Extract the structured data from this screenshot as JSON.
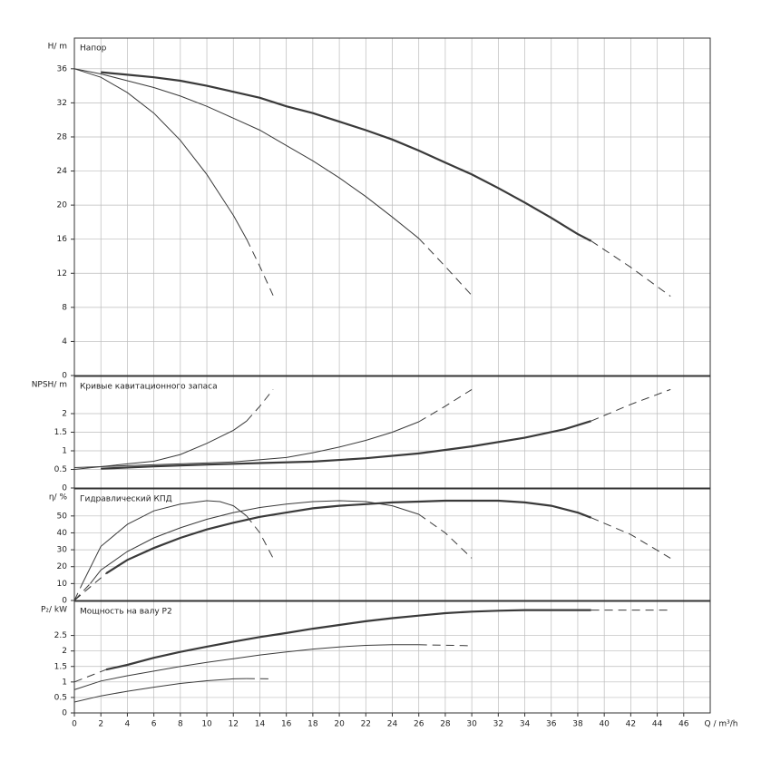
{
  "chart_data": [
    {
      "type": "line",
      "title": "Напор",
      "ylabel": "H/ m",
      "xlim": [
        0,
        48
      ],
      "ylim": [
        0,
        39.6
      ],
      "yticks": [
        0,
        4,
        8,
        12,
        16,
        20,
        24,
        28,
        32,
        36
      ],
      "grid": true,
      "series": [
        {
          "color": "#3a3a3a",
          "width": 2.2,
          "dashed": false,
          "x": [
            2,
            4,
            6,
            8,
            10,
            12,
            14,
            16,
            18,
            20,
            22,
            24,
            26,
            28,
            30,
            32,
            34,
            36,
            38,
            39
          ],
          "values": [
            35.6,
            35.3,
            35,
            34.6,
            34,
            33.3,
            32.6,
            31.6,
            30.8,
            29.8,
            28.8,
            27.7,
            26.4,
            25,
            23.6,
            22,
            20.3,
            18.5,
            16.6,
            15.8
          ]
        },
        {
          "color": "#3a3a3a",
          "width": 1,
          "dashed": true,
          "x": [
            39,
            42,
            45
          ],
          "values": [
            15.8,
            12.7,
            9.3
          ]
        },
        {
          "color": "#3a3a3a",
          "width": 1,
          "dashed": false,
          "x": [
            0,
            2,
            4,
            6,
            8,
            10,
            12,
            14,
            16,
            18,
            20,
            22,
            24,
            26
          ],
          "values": [
            36,
            35.4,
            34.6,
            33.8,
            32.8,
            31.6,
            30.2,
            28.8,
            27,
            25.2,
            23.2,
            21,
            18.6,
            16.1
          ]
        },
        {
          "color": "#3a3a3a",
          "width": 1,
          "dashed": true,
          "x": [
            26,
            28,
            30
          ],
          "values": [
            16.1,
            12.8,
            9.4
          ]
        },
        {
          "color": "#3a3a3a",
          "width": 1,
          "dashed": false,
          "x": [
            0,
            2,
            4,
            6,
            8,
            10,
            12,
            13
          ],
          "values": [
            36,
            35,
            33.2,
            30.8,
            27.6,
            23.6,
            18.8,
            16
          ]
        },
        {
          "color": "#3a3a3a",
          "width": 1,
          "dashed": true,
          "x": [
            13,
            14,
            15
          ],
          "values": [
            16,
            12.8,
            9.4
          ]
        }
      ]
    },
    {
      "type": "line",
      "title": "Кривые кавитационного запаса",
      "ylabel": "NPSH/ m",
      "xlim": [
        0,
        48
      ],
      "ylim": [
        0,
        3
      ],
      "yticks": [
        0,
        0.5,
        1,
        1.5,
        2
      ],
      "grid": true,
      "series": [
        {
          "color": "#3a3a3a",
          "width": 2.2,
          "dashed": false,
          "x": [
            2,
            6,
            10,
            14,
            18,
            22,
            26,
            30,
            34,
            37,
            39
          ],
          "values": [
            0.52,
            0.58,
            0.63,
            0.67,
            0.71,
            0.8,
            0.93,
            1.12,
            1.35,
            1.58,
            1.8
          ]
        },
        {
          "color": "#3a3a3a",
          "width": 1,
          "dashed": true,
          "x": [
            39,
            42,
            45
          ],
          "values": [
            1.8,
            2.25,
            2.65
          ]
        },
        {
          "color": "#3a3a3a",
          "width": 1,
          "dashed": false,
          "x": [
            0,
            4,
            8,
            12,
            16,
            18,
            20,
            22,
            24,
            26
          ],
          "values": [
            0.55,
            0.6,
            0.65,
            0.7,
            0.82,
            0.95,
            1.1,
            1.28,
            1.5,
            1.78
          ]
        },
        {
          "color": "#3a3a3a",
          "width": 1,
          "dashed": true,
          "x": [
            26,
            28,
            30
          ],
          "values": [
            1.78,
            2.2,
            2.65
          ]
        },
        {
          "color": "#3a3a3a",
          "width": 1,
          "dashed": false,
          "x": [
            0,
            4,
            6,
            8,
            10,
            12,
            13
          ],
          "values": [
            0.5,
            0.65,
            0.72,
            0.9,
            1.2,
            1.55,
            1.8
          ]
        },
        {
          "color": "#3a3a3a",
          "width": 1,
          "dashed": true,
          "x": [
            13,
            14,
            15
          ],
          "values": [
            1.8,
            2.2,
            2.65
          ]
        }
      ]
    },
    {
      "type": "line",
      "title": "Гидравлический КПД",
      "ylabel": "η/ %",
      "xlim": [
        0,
        48
      ],
      "ylim": [
        0,
        66
      ],
      "yticks": [
        0,
        10,
        20,
        30,
        40,
        50
      ],
      "grid": true,
      "series": [
        {
          "color": "#3a3a3a",
          "width": 1,
          "dashed": true,
          "x": [
            0,
            2.4
          ],
          "values": [
            0,
            16
          ]
        },
        {
          "color": "#3a3a3a",
          "width": 2.2,
          "dashed": false,
          "x": [
            2.4,
            4,
            6,
            8,
            10,
            12,
            14,
            16,
            18,
            20,
            22,
            24,
            26,
            28,
            30,
            32,
            34,
            36,
            38,
            39
          ],
          "values": [
            16,
            24,
            31,
            37,
            42,
            46,
            49.5,
            52,
            54.5,
            56,
            57,
            58,
            58.5,
            59,
            59,
            59,
            58,
            56,
            52,
            49
          ]
        },
        {
          "color": "#3a3a3a",
          "width": 1,
          "dashed": true,
          "x": [
            39,
            42,
            45
          ],
          "values": [
            49,
            39,
            25
          ]
        },
        {
          "color": "#3a3a3a",
          "width": 1,
          "dashed": true,
          "x": [
            0,
            1.2
          ],
          "values": [
            0,
            10
          ]
        },
        {
          "color": "#3a3a3a",
          "width": 1,
          "dashed": false,
          "x": [
            1.2,
            2,
            4,
            6,
            8,
            10,
            12,
            14,
            16,
            18,
            20,
            22,
            24,
            26
          ],
          "values": [
            10,
            18,
            29,
            37,
            43,
            48,
            52,
            55,
            57,
            58.5,
            59,
            58.5,
            56,
            51
          ]
        },
        {
          "color": "#3a3a3a",
          "width": 1,
          "dashed": true,
          "x": [
            26,
            28,
            30
          ],
          "values": [
            51,
            40,
            25
          ]
        },
        {
          "color": "#3a3a3a",
          "width": 1,
          "dashed": true,
          "x": [
            0,
            0.6
          ],
          "values": [
            0,
            10
          ]
        },
        {
          "color": "#3a3a3a",
          "width": 1,
          "dashed": false,
          "x": [
            0.6,
            2,
            4,
            6,
            8,
            10,
            11,
            12,
            13
          ],
          "values": [
            10,
            32,
            45,
            53,
            57,
            59,
            58.5,
            56,
            50
          ]
        },
        {
          "color": "#3a3a3a",
          "width": 1,
          "dashed": true,
          "x": [
            13,
            14,
            15
          ],
          "values": [
            50,
            40,
            25
          ]
        }
      ]
    },
    {
      "type": "line",
      "title": "Мощность на валу P2",
      "ylabel": "P₂/ kW",
      "xlabel": "Q / m³/h",
      "xlim": [
        0,
        48
      ],
      "ylim": [
        0,
        3.6
      ],
      "yticks": [
        0,
        0.5,
        1,
        1.5,
        2,
        2.5
      ],
      "xticks": [
        0,
        2,
        4,
        6,
        8,
        10,
        12,
        14,
        16,
        18,
        20,
        22,
        24,
        26,
        28,
        30,
        32,
        34,
        36,
        38,
        40,
        42,
        44,
        46
      ],
      "grid": true,
      "series": [
        {
          "color": "#3a3a3a",
          "width": 1,
          "dashed": true,
          "x": [
            0,
            2.4
          ],
          "values": [
            1,
            1.4
          ]
        },
        {
          "color": "#3a3a3a",
          "width": 2.2,
          "dashed": false,
          "x": [
            2.4,
            4,
            6,
            8,
            10,
            12,
            14,
            16,
            18,
            20,
            22,
            24,
            26,
            28,
            30,
            32,
            34,
            36,
            39
          ],
          "values": [
            1.4,
            1.55,
            1.78,
            1.97,
            2.14,
            2.3,
            2.45,
            2.58,
            2.72,
            2.84,
            2.96,
            3.06,
            3.14,
            3.22,
            3.27,
            3.3,
            3.32,
            3.32,
            3.32
          ]
        },
        {
          "color": "#3a3a3a",
          "width": 1,
          "dashed": true,
          "x": [
            39,
            45
          ],
          "values": [
            3.32,
            3.32
          ]
        },
        {
          "color": "#3a3a3a",
          "width": 1,
          "dashed": false,
          "x": [
            0,
            2,
            4,
            6,
            8,
            10,
            12,
            14,
            16,
            18,
            20,
            22,
            24,
            26
          ],
          "values": [
            0.75,
            1.03,
            1.2,
            1.35,
            1.5,
            1.63,
            1.75,
            1.87,
            1.97,
            2.06,
            2.13,
            2.18,
            2.2,
            2.2
          ]
        },
        {
          "color": "#3a3a3a",
          "width": 1,
          "dashed": true,
          "x": [
            26,
            30
          ],
          "values": [
            2.2,
            2.17
          ]
        },
        {
          "color": "#3a3a3a",
          "width": 1,
          "dashed": false,
          "x": [
            0,
            2,
            4,
            6,
            8,
            10,
            12,
            13
          ],
          "values": [
            0.35,
            0.55,
            0.7,
            0.83,
            0.95,
            1.04,
            1.1,
            1.11
          ]
        },
        {
          "color": "#3a3a3a",
          "width": 1,
          "dashed": true,
          "x": [
            13,
            15
          ],
          "values": [
            1.11,
            1.1
          ]
        }
      ]
    }
  ]
}
